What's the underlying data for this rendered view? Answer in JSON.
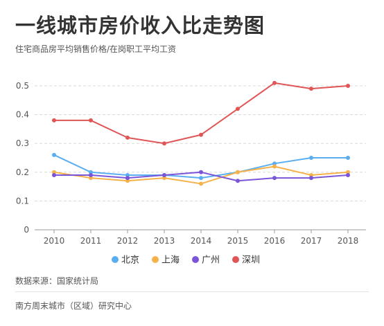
{
  "title": "一线城市房价收入比走势图",
  "subtitle": "住宅商品房平均销售价格/在岗职工平均工资",
  "source": "数据来源：国家统计局",
  "footer": "南方周末城市（区域）研究中心",
  "chart_data": {
    "type": "line",
    "categories": [
      "2010",
      "2011",
      "2012",
      "2013",
      "2014",
      "2015",
      "2016",
      "2017",
      "2018"
    ],
    "ylim": [
      0,
      0.5
    ],
    "yticks": [
      0,
      0.1,
      0.2,
      0.3,
      0.4,
      0.5
    ],
    "ytick_labels": [
      "0",
      "0.1",
      "0.2",
      "0.3",
      "0.4",
      "0.5"
    ],
    "grid": true,
    "legend_position": "bottom",
    "series": [
      {
        "name": "北京",
        "color": "#5aaef0",
        "values": [
          0.26,
          0.2,
          0.19,
          0.19,
          0.18,
          0.2,
          0.23,
          0.25,
          0.25
        ]
      },
      {
        "name": "上海",
        "color": "#f5b24a",
        "values": [
          0.2,
          0.18,
          0.17,
          0.18,
          0.16,
          0.2,
          0.22,
          0.19,
          0.2
        ]
      },
      {
        "name": "广州",
        "color": "#7a55d8",
        "values": [
          0.19,
          0.19,
          0.18,
          0.19,
          0.2,
          0.17,
          0.18,
          0.18,
          0.19
        ]
      },
      {
        "name": "深圳",
        "color": "#e05555",
        "values": [
          0.38,
          0.38,
          0.32,
          0.3,
          0.33,
          0.42,
          0.51,
          0.49,
          0.5
        ]
      }
    ]
  }
}
